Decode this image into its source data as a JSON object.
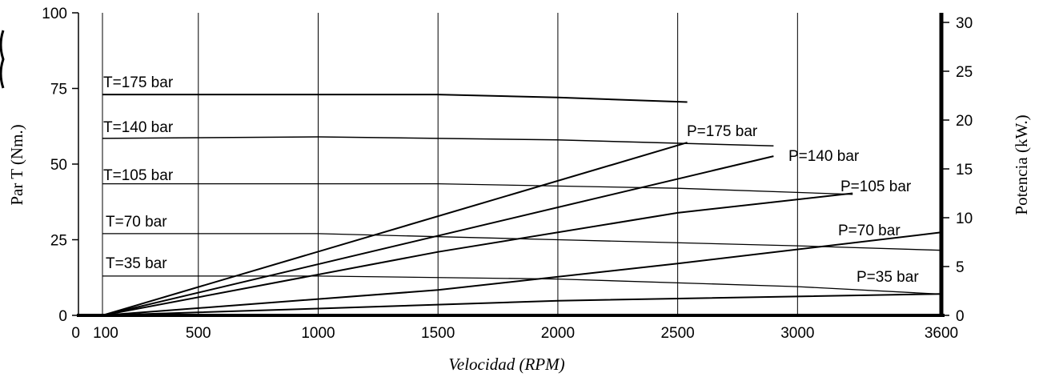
{
  "chart_data": {
    "type": "line",
    "title": "",
    "xlabel": "Velocidad (RPM)",
    "ylabel_left": "Par T (Nm.)",
    "ylabel_right": "Potencia (kW.)",
    "xlim": [
      0,
      3600
    ],
    "ylim_left": [
      0,
      100
    ],
    "ylim_right": [
      0,
      31.5
    ],
    "x_ticks": [
      0,
      100,
      500,
      1000,
      1500,
      2000,
      2500,
      3000,
      3600
    ],
    "y_left_ticks": [
      0,
      25,
      50,
      75,
      100
    ],
    "y_right_ticks": [
      0,
      5,
      10,
      15,
      20,
      25,
      30
    ],
    "grid": "vertical",
    "series": [
      {
        "name": "T=175 bar",
        "axis": "left",
        "x": [
          100,
          1500,
          2000,
          2540
        ],
        "y": [
          73,
          73,
          72,
          70.5
        ]
      },
      {
        "name": "T=140 bar",
        "axis": "left",
        "x": [
          100,
          1000,
          2000,
          2900
        ],
        "y": [
          58.5,
          59,
          58,
          56
        ]
      },
      {
        "name": "T=105 bar",
        "axis": "left",
        "x": [
          100,
          1500,
          2500,
          3230
        ],
        "y": [
          43.5,
          43.5,
          42,
          40
        ]
      },
      {
        "name": "T=70 bar",
        "axis": "left",
        "x": [
          100,
          1000,
          2000,
          3000,
          3600
        ],
        "y": [
          27,
          27,
          25,
          23,
          21.5
        ]
      },
      {
        "name": "T=35 bar",
        "axis": "left",
        "x": [
          100,
          1000,
          2000,
          3000,
          3600
        ],
        "y": [
          13,
          13,
          12,
          9.5,
          7
        ]
      },
      {
        "name": "P=175 bar",
        "axis": "right",
        "x": [
          100,
          2540
        ],
        "y": [
          0,
          17.7
        ]
      },
      {
        "name": "P=140 bar",
        "axis": "right",
        "x": [
          100,
          2900
        ],
        "y": [
          0,
          16.3
        ]
      },
      {
        "name": "P=105 bar",
        "axis": "right",
        "x": [
          100,
          1500,
          2500,
          3230
        ],
        "y": [
          0,
          6.5,
          10.5,
          12.5
        ]
      },
      {
        "name": "P=70 bar",
        "axis": "right",
        "x": [
          100,
          1500,
          2500,
          3600
        ],
        "y": [
          0,
          2.6,
          5.3,
          8.5
        ]
      },
      {
        "name": "P=35 bar",
        "axis": "right",
        "x": [
          100,
          1000,
          2000,
          3600
        ],
        "y": [
          0,
          0.7,
          1.5,
          2.2
        ]
      }
    ]
  }
}
